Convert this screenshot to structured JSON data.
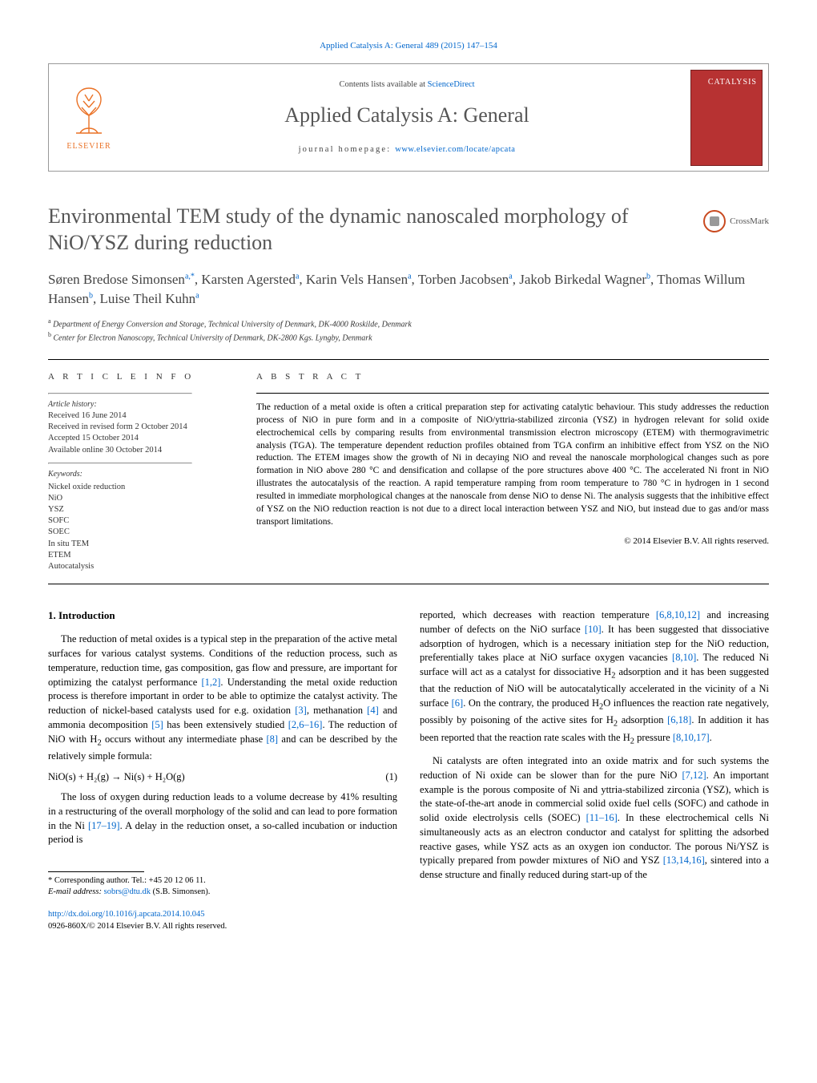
{
  "header_link": "Applied Catalysis A: General 489 (2015) 147–154",
  "masthead": {
    "contents_prefix": "Contents lists available at ",
    "contents_link": "ScienceDirect",
    "journal_name": "Applied Catalysis A: General",
    "homepage_prefix": "journal homepage: ",
    "homepage_link": "www.elsevier.com/locate/apcata",
    "publisher_name": "ELSEVIER",
    "cover_text": "CATALYSIS"
  },
  "crossmark_label": "CrossMark",
  "article": {
    "title": "Environmental TEM study of the dynamic nanoscaled morphology of NiO/YSZ during reduction",
    "authors_html": "Søren Bredose Simonsen<sup>a,*</sup>, Karsten Agersted<sup>a</sup>, Karin Vels Hansen<sup>a</sup>, Torben Jacobsen<sup>a</sup>, Jakob Birkedal Wagner<sup>b</sup>, Thomas Willum Hansen<sup>b</sup>, Luise Theil Kuhn<sup>a</sup>",
    "affiliations": [
      {
        "sup": "a",
        "text": "Department of Energy Conversion and Storage, Technical University of Denmark, DK-4000 Roskilde, Denmark"
      },
      {
        "sup": "b",
        "text": "Center for Electron Nanoscopy, Technical University of Denmark, DK-2800 Kgs. Lyngby, Denmark"
      }
    ]
  },
  "article_info": {
    "heading": "A R T I C L E   I N F O",
    "history_label": "Article history:",
    "history": [
      "Received 16 June 2014",
      "Received in revised form 2 October 2014",
      "Accepted 15 October 2014",
      "Available online 30 October 2014"
    ],
    "keywords_label": "Keywords:",
    "keywords": [
      "Nickel oxide reduction",
      "NiO",
      "YSZ",
      "SOFC",
      "SOEC",
      "In situ TEM",
      "ETEM",
      "Autocatalysis"
    ]
  },
  "abstract": {
    "heading": "A B S T R A C T",
    "text": "The reduction of a metal oxide is often a critical preparation step for activating catalytic behaviour. This study addresses the reduction process of NiO in pure form and in a composite of NiO/yttria-stabilized zirconia (YSZ) in hydrogen relevant for solid oxide electrochemical cells by comparing results from environmental transmission electron microscopy (ETEM) with thermogravimetric analysis (TGA). The temperature dependent reduction profiles obtained from TGA confirm an inhibitive effect from YSZ on the NiO reduction. The ETEM images show the growth of Ni in decaying NiO and reveal the nanoscale morphological changes such as pore formation in NiO above 280 °C and densification and collapse of the pore structures above 400 °C. The accelerated Ni front in NiO illustrates the autocatalysis of the reaction. A rapid temperature ramping from room temperature to 780 °C in hydrogen in 1 second resulted in immediate morphological changes at the nanoscale from dense NiO to dense Ni. The analysis suggests that the inhibitive effect of YSZ on the NiO reduction reaction is not due to a direct local interaction between YSZ and NiO, but instead due to gas and/or mass transport limitations.",
    "copyright": "© 2014 Elsevier B.V. All rights reserved."
  },
  "sections": {
    "intro_heading": "1.  Introduction",
    "col1_paras": [
      "The reduction of metal oxides is a typical step in the preparation of the active metal surfaces for various catalyst systems. Conditions of the reduction process, such as temperature, reduction time, gas composition, gas flow and pressure, are important for optimizing the catalyst performance <span class=\"cite\">[1,2]</span>. Understanding the metal oxide reduction process is therefore important in order to be able to optimize the catalyst activity. The reduction of nickel-based catalysts used for e.g. oxidation <span class=\"cite\">[3]</span>, methanation <span class=\"cite\">[4]</span> and ammonia decomposition <span class=\"cite\">[5]</span> has been extensively studied <span class=\"cite\">[2,6–16]</span>. The reduction of NiO with H<sub>2</sub> occurs without any intermediate phase <span class=\"cite\">[8]</span> and can be described by the relatively simple formula:"
    ],
    "equation": "NiO(s) + H₂(g) → Ni(s) + H₂O(g)",
    "equation_num": "(1)",
    "col1_paras_after_eq": [
      "The loss of oxygen during reduction leads to a volume decrease by 41% resulting in a restructuring of the overall morphology of the solid and can lead to pore formation in the Ni <span class=\"cite\">[17–19]</span>. A delay in the reduction onset, a so-called incubation or induction period is"
    ],
    "col2_paras": [
      "reported, which decreases with reaction temperature <span class=\"cite\">[6,8,10,12]</span> and increasing number of defects on the NiO surface <span class=\"cite\">[10]</span>. It has been suggested that dissociative adsorption of hydrogen, which is a necessary initiation step for the NiO reduction, preferentially takes place at NiO surface oxygen vacancies <span class=\"cite\">[8,10]</span>. The reduced Ni surface will act as a catalyst for dissociative H<sub>2</sub> adsorption and it has been suggested that the reduction of NiO will be autocatalytically accelerated in the vicinity of a Ni surface <span class=\"cite\">[6]</span>. On the contrary, the produced H<sub>2</sub>O influences the reaction rate negatively, possibly by poisoning of the active sites for H<sub>2</sub> adsorption <span class=\"cite\">[6,18]</span>. In addition it has been reported that the reaction rate scales with the H<sub>2</sub> pressure <span class=\"cite\">[8,10,17]</span>.",
      "Ni catalysts are often integrated into an oxide matrix and for such systems the reduction of Ni oxide can be slower than for the pure NiO <span class=\"cite\">[7,12]</span>. An important example is the porous composite of Ni and yttria-stabilized zirconia (YSZ), which is the state-of-the-art anode in commercial solid oxide fuel cells (SOFC) and cathode in solid oxide electrolysis cells (SOEC) <span class=\"cite\">[11–16]</span>. In these electrochemical cells Ni simultaneously acts as an electron conductor and catalyst for splitting the adsorbed reactive gases, while YSZ acts as an oxygen ion conductor. The porous Ni/YSZ is typically prepared from powder mixtures of NiO and YSZ <span class=\"cite\">[13,14,16]</span>, sintered into a dense structure and finally reduced during start-up of the"
    ]
  },
  "footnote": {
    "corr_label": "* Corresponding author. Tel.: +45 20 12 06 11.",
    "email_label": "E-mail address: ",
    "email": "sobrs@dtu.dk",
    "email_attrib": " (S.B. Simonsen)."
  },
  "doi": {
    "link": "http://dx.doi.org/10.1016/j.apcata.2014.10.045",
    "issn_line": "0926-860X/© 2014 Elsevier B.V. All rights reserved."
  },
  "colors": {
    "link": "#0066cc",
    "elsevier": "#ea7125",
    "cover": "#b73232",
    "text_muted": "#555"
  }
}
